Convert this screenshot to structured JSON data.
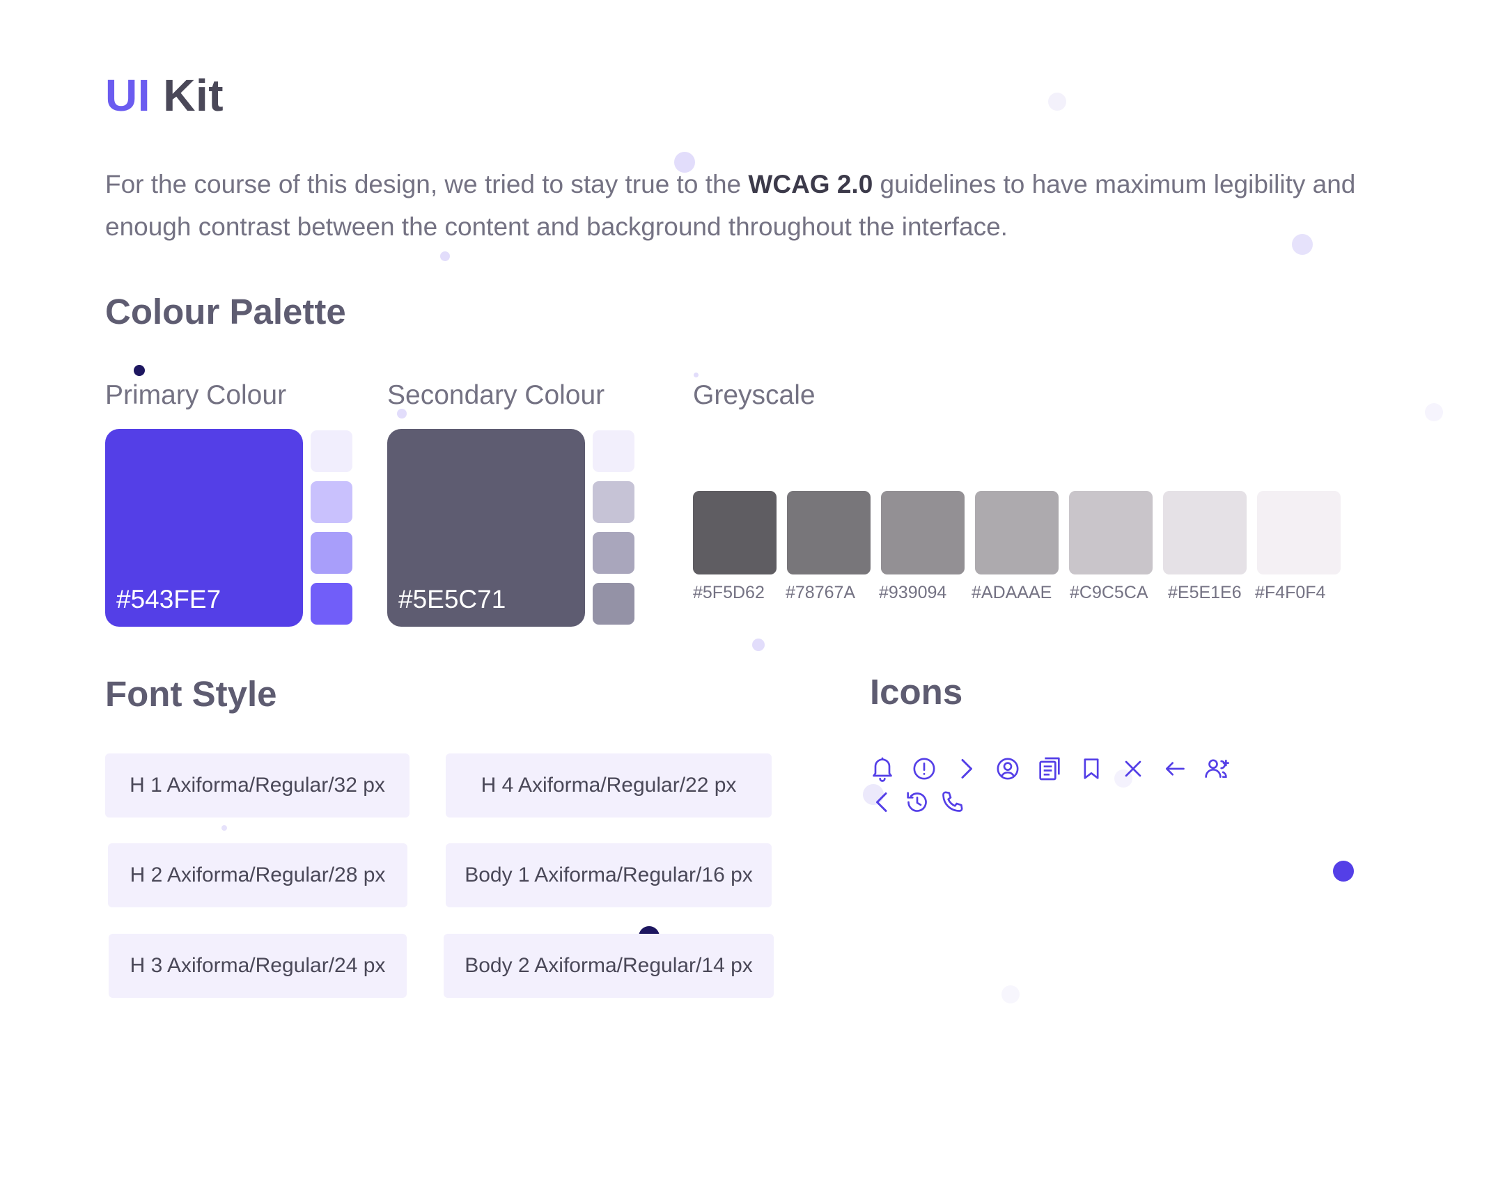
{
  "header": {
    "title_accent": "UI",
    "title_rest": "Kit",
    "intro_before": "For the course of this design, we tried to stay true to the ",
    "intro_bold": "WCAG 2.0",
    "intro_after": " guidelines to have maximum legibility and enough contrast between the content and background throughout the interface."
  },
  "palette": {
    "title": "Colour Palette",
    "primary": {
      "label": "Primary Colour",
      "hex": "#543FE7",
      "tints": [
        "#F1EEFD",
        "#C9C1FD",
        "#A89EFA",
        "#715EF9"
      ]
    },
    "secondary": {
      "label": "Secondary Colour",
      "hex": "#5E5C71",
      "tints": [
        "#F2EFFC",
        "#C6C3D6",
        "#A9A6BC",
        "#9492A6"
      ]
    },
    "greyscale": {
      "label": "Greyscale",
      "swatches": [
        "#5F5D62",
        "#78767A",
        "#939094",
        "#ADAAAE",
        "#C9C5CA",
        "#E5E1E6",
        "#F4F0F4"
      ]
    }
  },
  "fonts": {
    "title": "Font Style",
    "h1": "H 1 Axiforma/Regular/32 px",
    "h2": "H 2 Axiforma/Regular/28 px",
    "h3": "H 3 Axiforma/Regular/24 px",
    "h4": "H 4 Axiforma/Regular/22 px",
    "body1": "Body 1 Axiforma/Regular/16 px",
    "body2": "Body 2 Axiforma/Regular/14 px"
  },
  "icons": {
    "title": "Icons",
    "color": "#543FE7",
    "row1": [
      "bell-icon",
      "alert-circle-icon",
      "chevron-right-icon",
      "user-circle-icon",
      "document-icon",
      "bookmark-icon",
      "close-icon",
      "arrow-left-icon",
      "add-user-icon"
    ],
    "row2": [
      "chevron-left-icon",
      "history-icon",
      "phone-icon"
    ]
  }
}
